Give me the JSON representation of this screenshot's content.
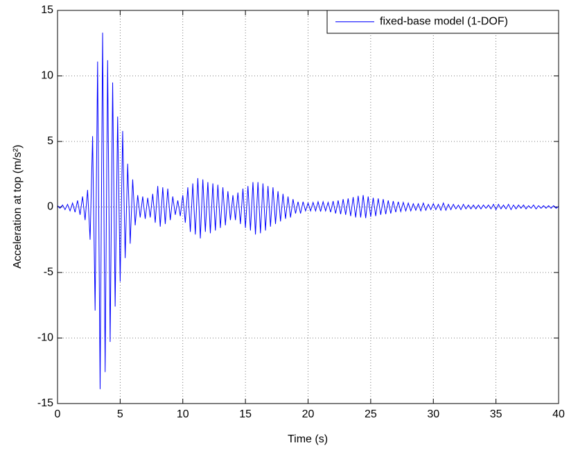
{
  "chart_data": {
    "type": "line",
    "xlabel": "Time (s)",
    "ylabel": "Acceleration at top (m/s²)",
    "xlim": [
      0,
      40
    ],
    "xticks": [
      0,
      5,
      10,
      15,
      20,
      25,
      30,
      35,
      40
    ],
    "ylim": [
      -15,
      15
    ],
    "yticks": [
      -15,
      -10,
      -5,
      0,
      5,
      10,
      15
    ],
    "grid": true,
    "legend": "top-right",
    "x": [
      0,
      0.2,
      0.4,
      0.6,
      0.8,
      1,
      1.2,
      1.4,
      1.6,
      1.8,
      2,
      2.2,
      2.4,
      2.6,
      2.8,
      3,
      3.2,
      3.4,
      3.6,
      3.8,
      4,
      4.2,
      4.4,
      4.6,
      4.8,
      5,
      5.2,
      5.4,
      5.6,
      5.8,
      6,
      6.2,
      6.4,
      6.6,
      6.8,
      7,
      7.2,
      7.4,
      7.6,
      7.8,
      8,
      8.2,
      8.4,
      8.6,
      8.8,
      9,
      9.2,
      9.4,
      9.6,
      9.8,
      10,
      10.2,
      10.4,
      10.6,
      10.8,
      11,
      11.2,
      11.4,
      11.6,
      11.8,
      12,
      12.2,
      12.4,
      12.6,
      12.8,
      13,
      13.2,
      13.4,
      13.6,
      13.8,
      14,
      14.2,
      14.4,
      14.6,
      14.8,
      15,
      15.2,
      15.4,
      15.6,
      15.8,
      16,
      16.2,
      16.4,
      16.6,
      16.8,
      17,
      17.2,
      17.4,
      17.6,
      17.8,
      18,
      18.2,
      18.4,
      18.6,
      18.8,
      19,
      19.2,
      19.4,
      19.6,
      19.8,
      20,
      20.2,
      20.4,
      20.6,
      20.8,
      21,
      21.2,
      21.4,
      21.6,
      21.8,
      22,
      22.2,
      22.4,
      22.6,
      22.8,
      23,
      23.2,
      23.4,
      23.6,
      23.8,
      24,
      24.2,
      24.4,
      24.6,
      24.8,
      25,
      25.2,
      25.4,
      25.6,
      25.8,
      26,
      26.2,
      26.4,
      26.6,
      26.8,
      27,
      27.2,
      27.4,
      27.6,
      27.8,
      28,
      28.2,
      28.4,
      28.6,
      28.8,
      29,
      29.2,
      29.4,
      29.6,
      29.8,
      30,
      30.2,
      30.4,
      30.6,
      30.8,
      31,
      31.2,
      31.4,
      31.6,
      31.8,
      32,
      32.2,
      32.4,
      32.6,
      32.8,
      33,
      33.2,
      33.4,
      33.6,
      33.8,
      34,
      34.2,
      34.4,
      34.6,
      34.8,
      35,
      35.2,
      35.4,
      35.6,
      35.8,
      36,
      36.2,
      36.4,
      36.6,
      36.8,
      37,
      37.2,
      37.4,
      37.6,
      37.8,
      38,
      38.2,
      38.4,
      38.6,
      38.8,
      39,
      39.2,
      39.4,
      39.6,
      39.8,
      40
    ],
    "series": [
      {
        "name": "fixed-base model (1-DOF)",
        "color": "#0000ff",
        "values": [
          0.1,
          -0.1,
          0.15,
          -0.2,
          0.2,
          -0.3,
          0.3,
          -0.4,
          0.5,
          -0.6,
          0.8,
          -1,
          1.3,
          -2.5,
          5.4,
          -7.9,
          11.1,
          -13.9,
          13.3,
          -12.6,
          11.2,
          -10.3,
          9.5,
          -7.6,
          6.9,
          -5.7,
          5.8,
          -3.9,
          3.3,
          -2.8,
          2.1,
          -1.4,
          0.9,
          -0.8,
          0.8,
          -0.9,
          0.7,
          -0.8,
          1.0,
          -1.2,
          1.6,
          -1.5,
          1.5,
          -1.3,
          1.4,
          -1.0,
          0.8,
          -0.6,
          0.5,
          -0.7,
          0.9,
          -1.2,
          1.5,
          -1.9,
          1.8,
          -2.1,
          2.2,
          -2.4,
          2.1,
          -1.9,
          1.9,
          -2.0,
          1.8,
          -1.8,
          1.7,
          -1.6,
          1.5,
          -1.4,
          1.2,
          -1.0,
          0.9,
          -1.0,
          1.1,
          -1.3,
          1.4,
          -1.6,
          1.6,
          -1.8,
          1.9,
          -2.1,
          1.9,
          -2.0,
          1.8,
          -1.8,
          1.6,
          -1.5,
          1.5,
          -1.3,
          1.2,
          -1.1,
          1.0,
          -0.9,
          0.8,
          -0.8,
          0.6,
          -0.5,
          0.4,
          -0.5,
          0.4,
          -0.3,
          0.3,
          -0.3,
          0.35,
          -0.3,
          0.4,
          -0.35,
          0.4,
          -0.3,
          0.35,
          -0.4,
          0.45,
          -0.5,
          0.5,
          -0.55,
          0.6,
          -0.6,
          0.65,
          -0.7,
          0.75,
          -0.8,
          0.85,
          -0.8,
          0.9,
          -0.85,
          0.8,
          -0.75,
          0.7,
          -0.7,
          0.65,
          -0.6,
          0.6,
          -0.55,
          0.5,
          -0.5,
          0.45,
          -0.4,
          0.4,
          -0.35,
          0.35,
          -0.3,
          0.3,
          -0.3,
          0.25,
          -0.25,
          0.25,
          -0.3,
          0.3,
          -0.25,
          0.2,
          -0.2,
          0.25,
          -0.2,
          0.2,
          -0.25,
          0.3,
          -0.25,
          0.2,
          -0.2,
          0.2,
          -0.15,
          0.15,
          -0.2,
          0.2,
          -0.15,
          0.15,
          -0.15,
          0.15,
          -0.15,
          0.15,
          -0.15,
          0.15,
          -0.1,
          0.15,
          -0.15,
          0.2,
          -0.2,
          0.2,
          -0.15,
          0.15,
          -0.15,
          0.2,
          -0.2,
          0.15,
          -0.15,
          0.15,
          -0.1,
          0.15,
          -0.15,
          0.1,
          -0.1,
          0.15,
          -0.15,
          0.1,
          -0.1,
          0.1,
          -0.1,
          0.1,
          -0.1,
          0.1,
          -0.1,
          0.05
        ]
      }
    ]
  }
}
